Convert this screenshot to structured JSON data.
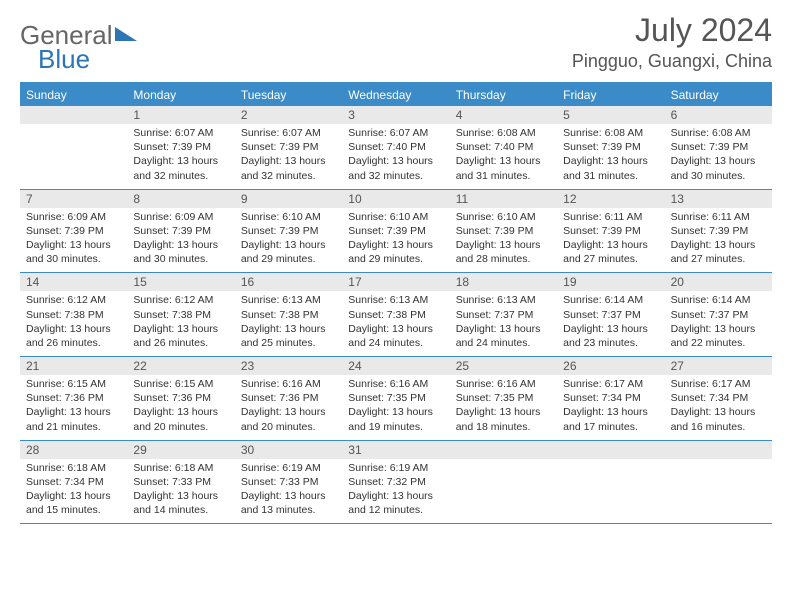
{
  "brand": {
    "part1": "General",
    "part2": "Blue"
  },
  "title": "July 2024",
  "location": "Pingguo, Guangxi, China",
  "colors": {
    "header_blue": "#3b8bc9",
    "daynum_bg": "#e9e9e9",
    "text": "#333333",
    "title_text": "#555555"
  },
  "days_of_week": [
    "Sunday",
    "Monday",
    "Tuesday",
    "Wednesday",
    "Thursday",
    "Friday",
    "Saturday"
  ],
  "weeks": [
    [
      null,
      {
        "n": "1",
        "sr": "Sunrise: 6:07 AM",
        "ss": "Sunset: 7:39 PM",
        "dl": "Daylight: 13 hours and 32 minutes."
      },
      {
        "n": "2",
        "sr": "Sunrise: 6:07 AM",
        "ss": "Sunset: 7:39 PM",
        "dl": "Daylight: 13 hours and 32 minutes."
      },
      {
        "n": "3",
        "sr": "Sunrise: 6:07 AM",
        "ss": "Sunset: 7:40 PM",
        "dl": "Daylight: 13 hours and 32 minutes."
      },
      {
        "n": "4",
        "sr": "Sunrise: 6:08 AM",
        "ss": "Sunset: 7:40 PM",
        "dl": "Daylight: 13 hours and 31 minutes."
      },
      {
        "n": "5",
        "sr": "Sunrise: 6:08 AM",
        "ss": "Sunset: 7:39 PM",
        "dl": "Daylight: 13 hours and 31 minutes."
      },
      {
        "n": "6",
        "sr": "Sunrise: 6:08 AM",
        "ss": "Sunset: 7:39 PM",
        "dl": "Daylight: 13 hours and 30 minutes."
      }
    ],
    [
      {
        "n": "7",
        "sr": "Sunrise: 6:09 AM",
        "ss": "Sunset: 7:39 PM",
        "dl": "Daylight: 13 hours and 30 minutes."
      },
      {
        "n": "8",
        "sr": "Sunrise: 6:09 AM",
        "ss": "Sunset: 7:39 PM",
        "dl": "Daylight: 13 hours and 30 minutes."
      },
      {
        "n": "9",
        "sr": "Sunrise: 6:10 AM",
        "ss": "Sunset: 7:39 PM",
        "dl": "Daylight: 13 hours and 29 minutes."
      },
      {
        "n": "10",
        "sr": "Sunrise: 6:10 AM",
        "ss": "Sunset: 7:39 PM",
        "dl": "Daylight: 13 hours and 29 minutes."
      },
      {
        "n": "11",
        "sr": "Sunrise: 6:10 AM",
        "ss": "Sunset: 7:39 PM",
        "dl": "Daylight: 13 hours and 28 minutes."
      },
      {
        "n": "12",
        "sr": "Sunrise: 6:11 AM",
        "ss": "Sunset: 7:39 PM",
        "dl": "Daylight: 13 hours and 27 minutes."
      },
      {
        "n": "13",
        "sr": "Sunrise: 6:11 AM",
        "ss": "Sunset: 7:39 PM",
        "dl": "Daylight: 13 hours and 27 minutes."
      }
    ],
    [
      {
        "n": "14",
        "sr": "Sunrise: 6:12 AM",
        "ss": "Sunset: 7:38 PM",
        "dl": "Daylight: 13 hours and 26 minutes."
      },
      {
        "n": "15",
        "sr": "Sunrise: 6:12 AM",
        "ss": "Sunset: 7:38 PM",
        "dl": "Daylight: 13 hours and 26 minutes."
      },
      {
        "n": "16",
        "sr": "Sunrise: 6:13 AM",
        "ss": "Sunset: 7:38 PM",
        "dl": "Daylight: 13 hours and 25 minutes."
      },
      {
        "n": "17",
        "sr": "Sunrise: 6:13 AM",
        "ss": "Sunset: 7:38 PM",
        "dl": "Daylight: 13 hours and 24 minutes."
      },
      {
        "n": "18",
        "sr": "Sunrise: 6:13 AM",
        "ss": "Sunset: 7:37 PM",
        "dl": "Daylight: 13 hours and 24 minutes."
      },
      {
        "n": "19",
        "sr": "Sunrise: 6:14 AM",
        "ss": "Sunset: 7:37 PM",
        "dl": "Daylight: 13 hours and 23 minutes."
      },
      {
        "n": "20",
        "sr": "Sunrise: 6:14 AM",
        "ss": "Sunset: 7:37 PM",
        "dl": "Daylight: 13 hours and 22 minutes."
      }
    ],
    [
      {
        "n": "21",
        "sr": "Sunrise: 6:15 AM",
        "ss": "Sunset: 7:36 PM",
        "dl": "Daylight: 13 hours and 21 minutes."
      },
      {
        "n": "22",
        "sr": "Sunrise: 6:15 AM",
        "ss": "Sunset: 7:36 PM",
        "dl": "Daylight: 13 hours and 20 minutes."
      },
      {
        "n": "23",
        "sr": "Sunrise: 6:16 AM",
        "ss": "Sunset: 7:36 PM",
        "dl": "Daylight: 13 hours and 20 minutes."
      },
      {
        "n": "24",
        "sr": "Sunrise: 6:16 AM",
        "ss": "Sunset: 7:35 PM",
        "dl": "Daylight: 13 hours and 19 minutes."
      },
      {
        "n": "25",
        "sr": "Sunrise: 6:16 AM",
        "ss": "Sunset: 7:35 PM",
        "dl": "Daylight: 13 hours and 18 minutes."
      },
      {
        "n": "26",
        "sr": "Sunrise: 6:17 AM",
        "ss": "Sunset: 7:34 PM",
        "dl": "Daylight: 13 hours and 17 minutes."
      },
      {
        "n": "27",
        "sr": "Sunrise: 6:17 AM",
        "ss": "Sunset: 7:34 PM",
        "dl": "Daylight: 13 hours and 16 minutes."
      }
    ],
    [
      {
        "n": "28",
        "sr": "Sunrise: 6:18 AM",
        "ss": "Sunset: 7:34 PM",
        "dl": "Daylight: 13 hours and 15 minutes."
      },
      {
        "n": "29",
        "sr": "Sunrise: 6:18 AM",
        "ss": "Sunset: 7:33 PM",
        "dl": "Daylight: 13 hours and 14 minutes."
      },
      {
        "n": "30",
        "sr": "Sunrise: 6:19 AM",
        "ss": "Sunset: 7:33 PM",
        "dl": "Daylight: 13 hours and 13 minutes."
      },
      {
        "n": "31",
        "sr": "Sunrise: 6:19 AM",
        "ss": "Sunset: 7:32 PM",
        "dl": "Daylight: 13 hours and 12 minutes."
      },
      null,
      null,
      null
    ]
  ]
}
